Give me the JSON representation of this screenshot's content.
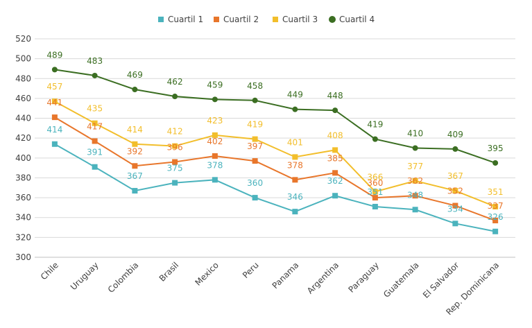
{
  "chart_data": {
    "type": "line",
    "categories": [
      "Chile",
      "Uruguay",
      "Colombia",
      "Brasil",
      "Mexico",
      "Peru",
      "Panama",
      "Argentina",
      "Paraguay",
      "Guatemala",
      "El Salvador",
      "Rep. Dominicana"
    ],
    "series": [
      {
        "name": "Cuartil 1",
        "color": "#4BB3BD",
        "marker": "square",
        "values": [
          414,
          391,
          367,
          375,
          378,
          360,
          346,
          362,
          351,
          348,
          334,
          326
        ]
      },
      {
        "name": "Cuartil 2",
        "color": "#E8762B",
        "marker": "square",
        "values": [
          441,
          417,
          392,
          396,
          402,
          397,
          378,
          385,
          360,
          362,
          352,
          337
        ]
      },
      {
        "name": "Cuartil 3",
        "color": "#F2BE2B",
        "marker": "square",
        "values": [
          457,
          435,
          414,
          412,
          423,
          419,
          401,
          408,
          366,
          377,
          367,
          351
        ]
      },
      {
        "name": "Cuartil 4",
        "color": "#3B6E22",
        "marker": "circle",
        "values": [
          489,
          483,
          469,
          462,
          459,
          458,
          449,
          448,
          419,
          410,
          409,
          395
        ]
      }
    ],
    "title": "",
    "xlabel": "",
    "ylabel": "",
    "ylim": [
      300,
      520
    ],
    "yticks": [
      300,
      320,
      340,
      360,
      380,
      400,
      420,
      440,
      460,
      480,
      500,
      520
    ],
    "grid": true,
    "legend_position": "top-center"
  }
}
